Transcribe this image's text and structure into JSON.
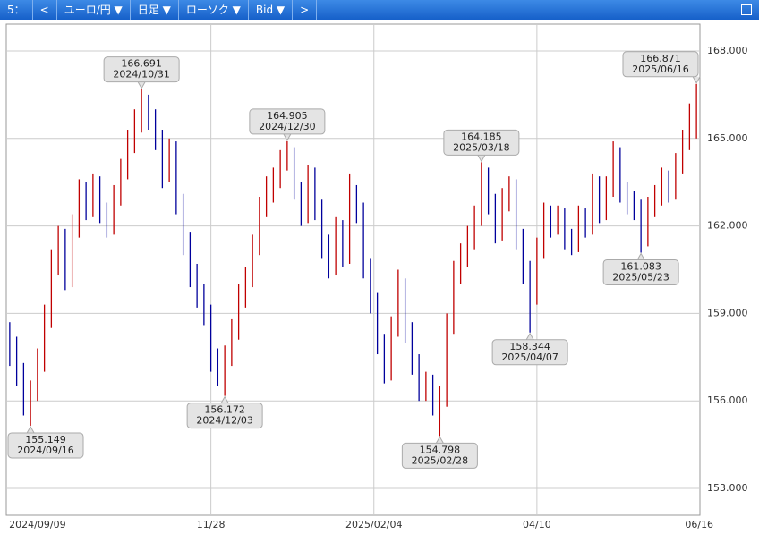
{
  "toolbar": [
    "5：",
    "<",
    "ユーロ/円 ▼",
    "日足 ▼",
    "ローソク ▼",
    "Bid ▼",
    ">"
  ],
  "chart_data": {
    "type": "ohlc",
    "up_color": "#c00000",
    "down_color": "#00009c",
    "grid": true,
    "open": [
      158.3,
      157.8,
      156.9,
      155.9,
      156.3,
      157.4,
      158.9,
      160.8,
      161.6,
      160.2,
      162.0,
      163.2,
      162.6,
      163.4,
      162.5,
      161.9,
      163.0,
      163.9,
      164.8,
      165.6,
      166.1,
      165.7,
      165.0,
      163.8,
      164.6,
      162.8,
      161.5,
      160.3,
      159.6,
      159.0,
      157.4,
      156.9,
      157.5,
      158.4,
      159.6,
      160.2,
      161.3,
      162.6,
      163.2,
      163.6,
      164.3,
      164.5,
      163.2,
      162.4,
      163.7,
      162.6,
      161.3,
      160.6,
      161.9,
      161.0,
      163.1,
      162.5,
      160.6,
      159.4,
      158.0,
      157.0,
      158.5,
      160.0,
      158.4,
      157.3,
      156.4,
      156.6,
      155.9,
      156.1,
      158.6,
      160.4,
      161.0,
      161.6,
      162.3,
      163.7,
      162.8,
      161.8,
      162.9,
      163.3,
      161.6,
      160.4,
      159.6,
      161.2,
      162.4,
      162.0,
      162.3,
      161.6,
      161.4,
      162.3,
      162.0,
      163.4,
      162.5,
      163.3,
      164.4,
      163.2,
      162.8,
      162.6,
      161.6,
      162.6,
      163.0,
      163.6,
      163.2,
      164.1,
      164.9,
      165.8
    ],
    "high": [
      158.7,
      158.2,
      157.3,
      156.7,
      157.8,
      159.3,
      161.2,
      162.0,
      161.9,
      162.4,
      163.6,
      163.5,
      163.8,
      163.7,
      162.8,
      163.4,
      164.3,
      165.3,
      166.0,
      166.691,
      166.5,
      166.0,
      165.3,
      165.0,
      164.9,
      163.1,
      161.8,
      160.7,
      160.0,
      159.3,
      157.8,
      157.9,
      158.8,
      160.0,
      160.6,
      161.7,
      163.0,
      163.7,
      164.0,
      164.6,
      164.905,
      164.7,
      163.5,
      164.1,
      164.0,
      162.9,
      161.7,
      162.3,
      162.2,
      163.8,
      163.4,
      162.8,
      160.9,
      159.7,
      158.3,
      158.9,
      160.5,
      160.2,
      158.7,
      157.6,
      157.0,
      156.9,
      156.5,
      159.0,
      160.8,
      161.4,
      162.0,
      162.7,
      164.185,
      164.0,
      163.1,
      163.3,
      163.7,
      163.6,
      161.9,
      160.8,
      161.6,
      162.8,
      162.7,
      162.7,
      162.6,
      161.9,
      162.7,
      162.6,
      163.8,
      163.7,
      163.7,
      164.9,
      164.7,
      163.5,
      163.2,
      162.9,
      163.0,
      163.4,
      164.0,
      163.9,
      164.5,
      165.3,
      166.2,
      166.871
    ],
    "low": [
      157.2,
      156.5,
      155.5,
      155.149,
      156.0,
      157.0,
      158.5,
      160.3,
      159.8,
      159.9,
      161.6,
      162.2,
      162.3,
      162.1,
      161.6,
      161.7,
      162.7,
      163.6,
      164.5,
      165.2,
      165.3,
      164.6,
      163.3,
      163.5,
      162.4,
      161.0,
      159.9,
      159.2,
      158.6,
      157.0,
      156.5,
      156.172,
      157.2,
      158.1,
      159.2,
      159.9,
      161.0,
      162.3,
      162.8,
      163.3,
      163.9,
      162.9,
      162.0,
      162.1,
      162.2,
      160.9,
      160.2,
      160.3,
      160.6,
      160.7,
      162.1,
      160.2,
      159.0,
      157.6,
      156.6,
      156.7,
      158.2,
      158.0,
      156.9,
      156.0,
      156.0,
      155.5,
      154.798,
      155.8,
      158.3,
      160.0,
      160.6,
      161.2,
      162.0,
      162.4,
      161.4,
      161.5,
      162.5,
      161.2,
      160.0,
      158.344,
      159.3,
      160.9,
      161.6,
      161.7,
      161.2,
      161.0,
      161.1,
      161.6,
      161.7,
      162.1,
      162.2,
      163.0,
      162.8,
      162.4,
      162.2,
      161.083,
      161.3,
      162.3,
      162.7,
      162.8,
      162.9,
      163.8,
      164.6,
      165.0
    ],
    "close": [
      157.8,
      156.9,
      155.9,
      156.3,
      157.4,
      158.9,
      160.8,
      161.6,
      160.2,
      162.0,
      163.2,
      162.6,
      163.4,
      162.5,
      161.9,
      163.0,
      163.9,
      164.8,
      165.6,
      166.1,
      165.7,
      165.0,
      163.8,
      164.6,
      162.8,
      161.5,
      160.3,
      159.6,
      159.0,
      157.4,
      156.9,
      157.5,
      158.4,
      159.6,
      160.2,
      161.3,
      162.6,
      163.2,
      163.6,
      164.3,
      164.5,
      163.2,
      162.4,
      163.7,
      162.6,
      161.3,
      160.6,
      161.9,
      161.0,
      163.1,
      162.5,
      160.6,
      159.4,
      158.0,
      157.0,
      158.5,
      160.0,
      158.4,
      157.3,
      156.4,
      156.6,
      155.9,
      156.1,
      158.6,
      160.4,
      161.0,
      161.6,
      162.3,
      163.7,
      162.8,
      161.8,
      162.9,
      163.3,
      161.6,
      160.4,
      159.6,
      161.2,
      162.4,
      162.0,
      162.3,
      161.6,
      161.4,
      162.3,
      162.0,
      163.4,
      162.5,
      163.3,
      164.4,
      163.2,
      162.8,
      162.6,
      161.6,
      162.6,
      163.0,
      163.6,
      163.2,
      164.1,
      164.9,
      165.8,
      166.3
    ],
    "ylim": [
      152.08,
      168.92
    ],
    "yticks": [
      {
        "value": 153,
        "label": "153.000"
      },
      {
        "value": 156,
        "label": "156.000"
      },
      {
        "value": 159,
        "label": "159.000"
      },
      {
        "value": 162,
        "label": "162.000"
      },
      {
        "value": 165,
        "label": "165.000"
      },
      {
        "value": 168,
        "label": "168.000"
      }
    ],
    "xticks": [
      {
        "value": 4,
        "label": "2024/09/09"
      },
      {
        "value": 29,
        "label": "11/28"
      },
      {
        "value": 52.5,
        "label": "2025/02/04"
      },
      {
        "value": 76,
        "label": "04/10"
      },
      {
        "value": 99.4,
        "label": "06/16"
      }
    ],
    "annotations": [
      {
        "value": 155.149,
        "label": "2024/09/16"
      },
      {
        "value": 166.691,
        "label": "2024/10/31"
      },
      {
        "value": 156.172,
        "label": "2024/12/03"
      },
      {
        "value": 164.905,
        "label": "2024/12/30"
      },
      {
        "value": 154.798,
        "label": "2025/02/28"
      },
      {
        "value": 164.185,
        "label": "2025/03/18"
      },
      {
        "value": 158.344,
        "label": "2025/04/07"
      },
      {
        "value": 161.083,
        "label": "2025/05/23"
      },
      {
        "value": 166.871,
        "label": "2025/06/16"
      }
    ]
  }
}
